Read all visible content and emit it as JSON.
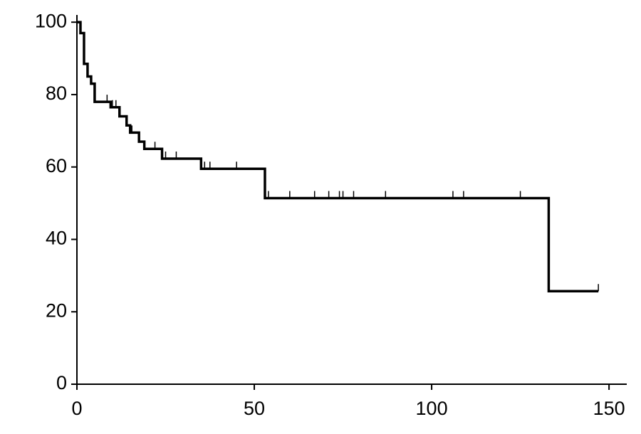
{
  "chart_data": {
    "type": "step",
    "series": [
      {
        "color": "#000000",
        "x": [
          0,
          1,
          2,
          3,
          4,
          5,
          9.5,
          12,
          14,
          15,
          17.5,
          19,
          24,
          35,
          53,
          133,
          147
        ],
        "values": [
          100,
          97,
          88.5,
          85,
          83,
          78,
          76.5,
          74,
          71.5,
          69.5,
          67,
          65,
          62.3,
          59.5,
          51.4,
          25.7,
          25.7
        ]
      }
    ],
    "censored": {
      "x": [
        8.5,
        10,
        11,
        15.5,
        22,
        25,
        28,
        36,
        37.5,
        45,
        54,
        60,
        67,
        71,
        74,
        75,
        78,
        87,
        106,
        109,
        125,
        147
      ],
      "values": [
        78,
        76.5,
        76.5,
        69.5,
        65,
        62.3,
        62.3,
        59.5,
        59.5,
        59.5,
        51.4,
        51.4,
        51.4,
        51.4,
        51.4,
        51.4,
        51.4,
        51.4,
        51.4,
        51.4,
        51.4,
        25.7
      ]
    },
    "xlim": [
      0,
      155
    ],
    "ylim": [
      0,
      102
    ],
    "xticks": [
      0,
      50,
      100,
      150
    ],
    "yticks": [
      0,
      20,
      40,
      60,
      80,
      100
    ],
    "grid": false
  }
}
